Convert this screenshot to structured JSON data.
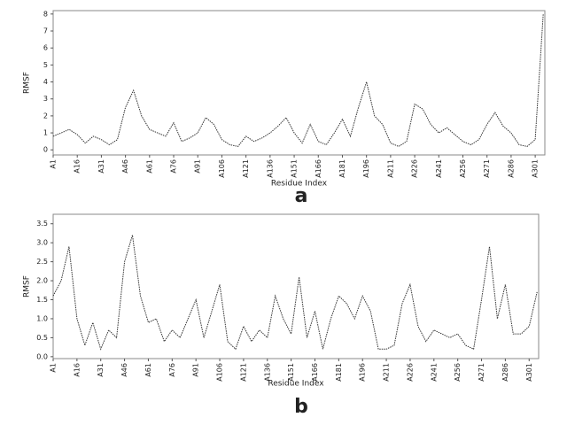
{
  "chart_data": [
    {
      "type": "line",
      "label": "a",
      "x_label": "Residue Index",
      "y_label": "RMSF",
      "color": "#333333",
      "x": [
        1,
        6,
        11,
        16,
        21,
        26,
        31,
        36,
        41,
        46,
        51,
        56,
        61,
        66,
        71,
        76,
        81,
        86,
        91,
        96,
        101,
        106,
        111,
        116,
        121,
        126,
        131,
        136,
        141,
        146,
        151,
        156,
        161,
        166,
        171,
        176,
        181,
        186,
        191,
        196,
        201,
        206,
        211,
        216,
        221,
        226,
        231,
        236,
        241,
        246,
        251,
        256,
        261,
        266,
        271,
        276,
        281,
        286,
        291,
        296,
        301,
        306
      ],
      "values": [
        0.8,
        1.0,
        1.2,
        0.9,
        0.4,
        0.8,
        0.6,
        0.3,
        0.6,
        2.5,
        3.5,
        2.0,
        1.2,
        1.0,
        0.8,
        1.6,
        0.5,
        0.7,
        1.0,
        1.9,
        1.5,
        0.6,
        0.3,
        0.2,
        0.8,
        0.5,
        0.7,
        1.0,
        1.4,
        1.9,
        1.0,
        0.4,
        1.5,
        0.5,
        0.3,
        1.0,
        1.8,
        0.8,
        2.5,
        4.0,
        2.0,
        1.5,
        0.4,
        0.2,
        0.5,
        2.7,
        2.4,
        1.5,
        1.0,
        1.3,
        0.9,
        0.5,
        0.3,
        0.6,
        1.5,
        2.2,
        1.4,
        1.0,
        0.3,
        0.2,
        0.6,
        8.0
      ],
      "xlim": [
        1,
        307
      ],
      "ylim": [
        -0.3,
        8.2
      ],
      "xticks": [
        {
          "value": 1,
          "label": "A1"
        },
        {
          "value": 16,
          "label": "A16"
        },
        {
          "value": 31,
          "label": "A31"
        },
        {
          "value": 46,
          "label": "A46"
        },
        {
          "value": 61,
          "label": "A61"
        },
        {
          "value": 76,
          "label": "A76"
        },
        {
          "value": 91,
          "label": "A91"
        },
        {
          "value": 106,
          "label": "A106"
        },
        {
          "value": 121,
          "label": "A121"
        },
        {
          "value": 136,
          "label": "A136"
        },
        {
          "value": 151,
          "label": "A151"
        },
        {
          "value": 166,
          "label": "A166"
        },
        {
          "value": 181,
          "label": "A181"
        },
        {
          "value": 196,
          "label": "A196"
        },
        {
          "value": 211,
          "label": "A211"
        },
        {
          "value": 226,
          "label": "A226"
        },
        {
          "value": 241,
          "label": "A241"
        },
        {
          "value": 256,
          "label": "A256"
        },
        {
          "value": 271,
          "label": "A271"
        },
        {
          "value": 286,
          "label": "A286"
        },
        {
          "value": 301,
          "label": "A301"
        }
      ],
      "yticks": [
        0,
        1,
        2,
        3,
        4,
        5,
        6,
        7,
        8
      ]
    },
    {
      "type": "line",
      "label": "b",
      "x_label": "Residue Index",
      "y_label": "RMSF",
      "color": "#333333",
      "x": [
        1,
        6,
        11,
        16,
        21,
        26,
        31,
        36,
        41,
        46,
        51,
        56,
        61,
        66,
        71,
        76,
        81,
        86,
        91,
        96,
        101,
        106,
        111,
        116,
        121,
        126,
        131,
        136,
        141,
        146,
        151,
        156,
        161,
        166,
        171,
        176,
        181,
        186,
        191,
        196,
        201,
        206,
        211,
        216,
        221,
        226,
        231,
        236,
        241,
        246,
        251,
        256,
        261,
        266,
        271,
        276,
        281,
        286,
        291,
        296,
        301,
        306
      ],
      "values": [
        1.6,
        2.0,
        2.9,
        1.0,
        0.3,
        0.9,
        0.2,
        0.7,
        0.5,
        2.5,
        3.2,
        1.6,
        0.9,
        1.0,
        0.4,
        0.7,
        0.5,
        1.0,
        1.5,
        0.5,
        1.2,
        1.9,
        0.4,
        0.2,
        0.8,
        0.4,
        0.7,
        0.5,
        1.6,
        1.0,
        0.6,
        2.1,
        0.5,
        1.2,
        0.2,
        1.0,
        1.6,
        1.4,
        1.0,
        1.6,
        1.2,
        0.2,
        0.2,
        0.3,
        1.4,
        1.9,
        0.8,
        0.4,
        0.7,
        0.6,
        0.5,
        0.6,
        0.3,
        0.2,
        1.5,
        2.9,
        1.0,
        1.9,
        0.6,
        0.6,
        0.8,
        1.7
      ],
      "xlim": [
        1,
        307
      ],
      "ylim": [
        -0.05,
        3.75
      ],
      "xticks": [
        {
          "value": 1,
          "label": "A1"
        },
        {
          "value": 16,
          "label": "A16"
        },
        {
          "value": 31,
          "label": "A31"
        },
        {
          "value": 46,
          "label": "A46"
        },
        {
          "value": 61,
          "label": "A61"
        },
        {
          "value": 76,
          "label": "A76"
        },
        {
          "value": 91,
          "label": "A91"
        },
        {
          "value": 106,
          "label": "A106"
        },
        {
          "value": 121,
          "label": "A121"
        },
        {
          "value": 136,
          "label": "A136"
        },
        {
          "value": 151,
          "label": "A151"
        },
        {
          "value": 166,
          "label": "A166"
        },
        {
          "value": 181,
          "label": "A181"
        },
        {
          "value": 196,
          "label": "A196"
        },
        {
          "value": 211,
          "label": "A211"
        },
        {
          "value": 226,
          "label": "A226"
        },
        {
          "value": 241,
          "label": "A241"
        },
        {
          "value": 256,
          "label": "A256"
        },
        {
          "value": 271,
          "label": "A271"
        },
        {
          "value": 286,
          "label": "A286"
        },
        {
          "value": 301,
          "label": "A301"
        }
      ],
      "yticks": [
        {
          "value": 0,
          "label": "0.0"
        },
        0.5,
        {
          "value": 1,
          "label": "1.0"
        },
        1.5,
        {
          "value": 2,
          "label": "2.0"
        },
        2.5,
        {
          "value": 3,
          "label": "3.0"
        },
        3.5
      ]
    }
  ]
}
